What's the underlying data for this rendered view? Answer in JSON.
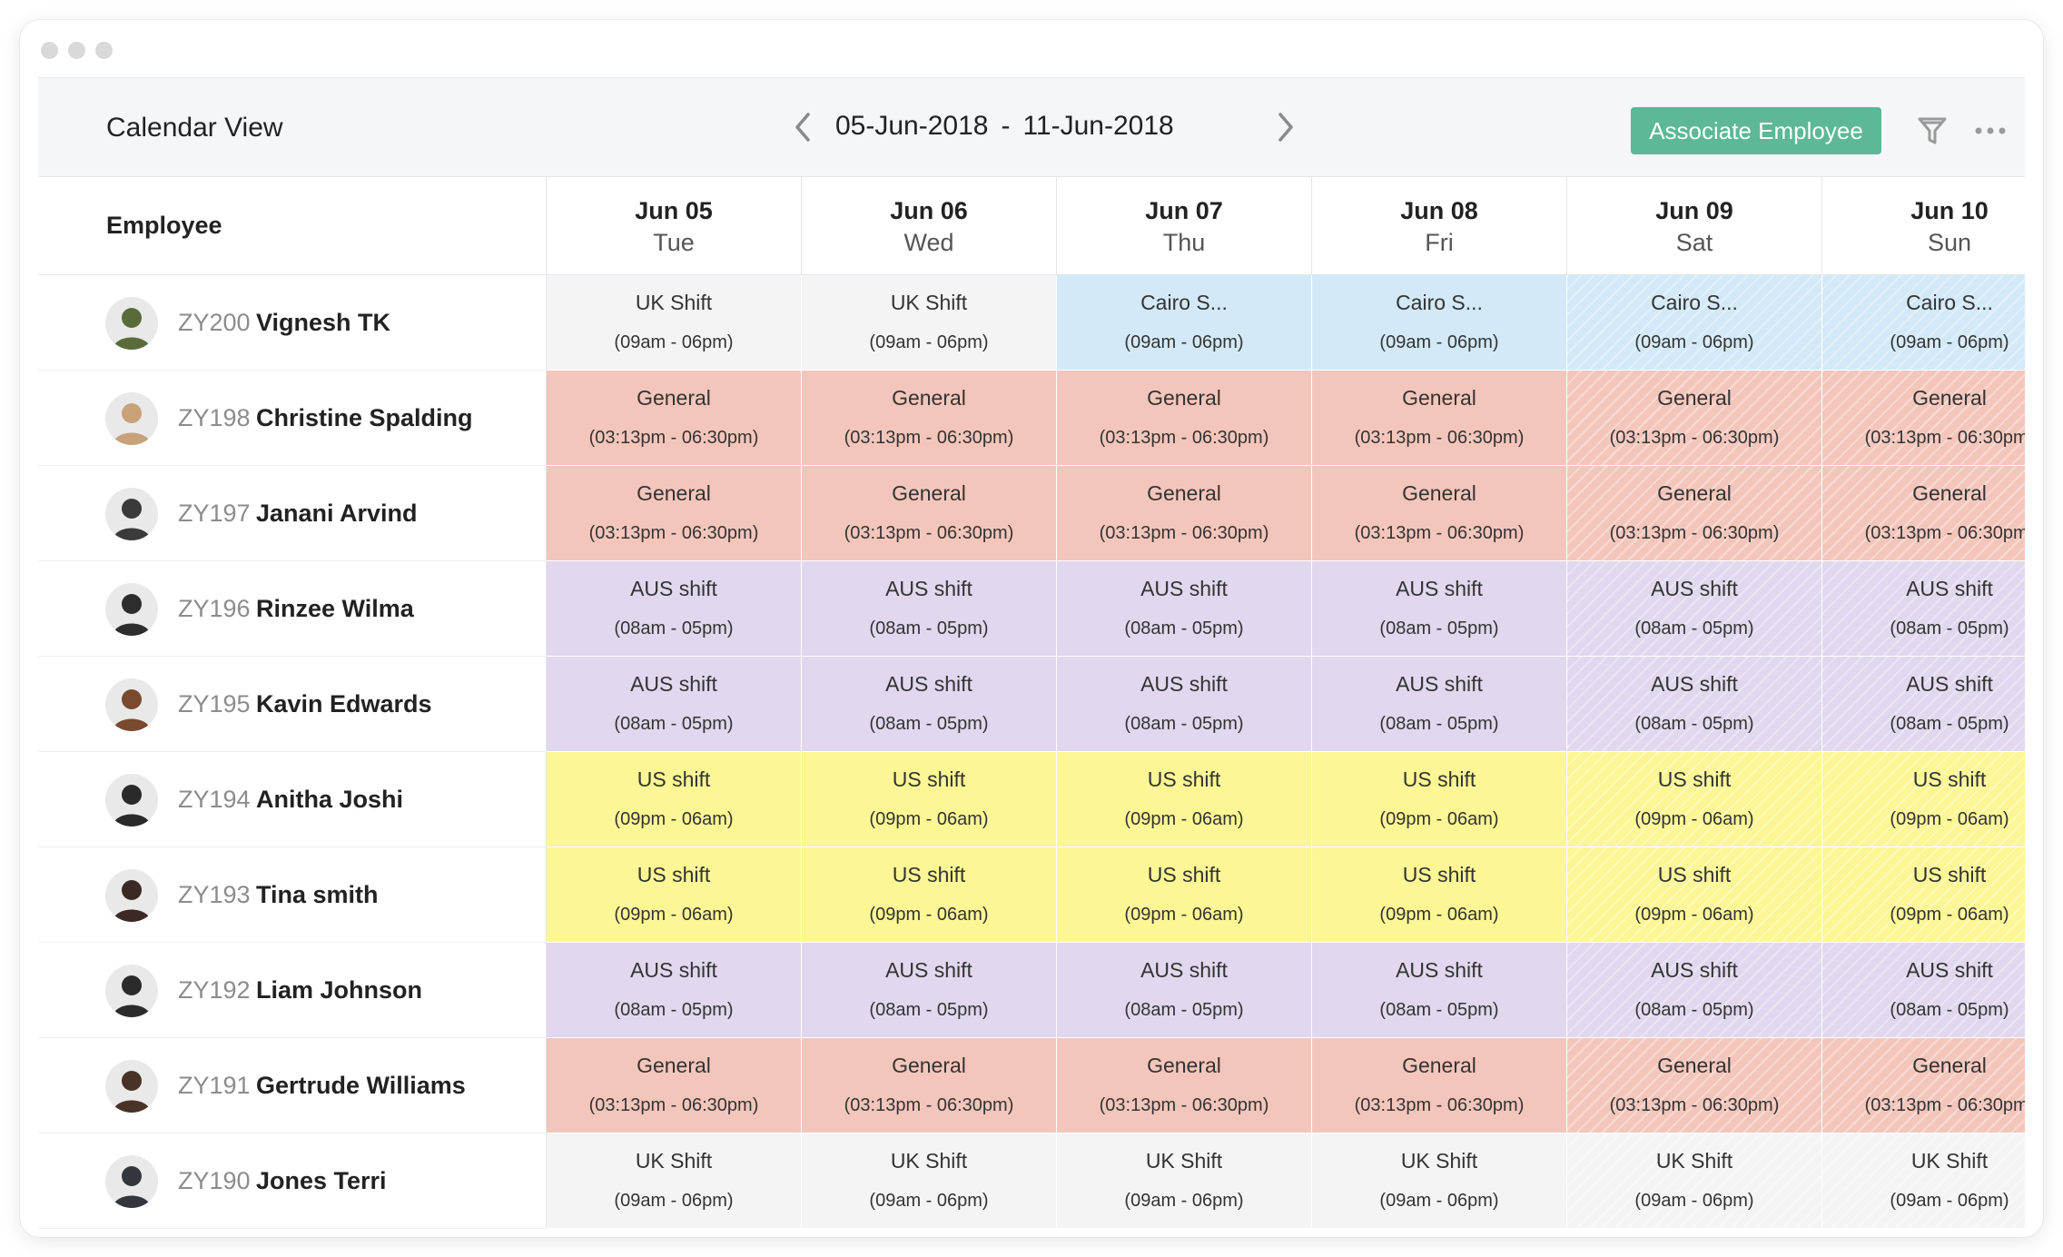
{
  "window": {
    "dots": 3
  },
  "toolbar": {
    "title": "Calendar View",
    "range_start": "05-Jun-2018",
    "range_separator": "-",
    "range_end": "11-Jun-2018",
    "associate_label": "Associate Employee",
    "accent_color": "#5cb897"
  },
  "grid": {
    "employee_header": "Employee",
    "days": [
      {
        "date": "Jun 05",
        "day": "Tue"
      },
      {
        "date": "Jun 06",
        "day": "Wed"
      },
      {
        "date": "Jun 07",
        "day": "Thu"
      },
      {
        "date": "Jun 08",
        "day": "Fri"
      },
      {
        "date": "Jun 09",
        "day": "Sat"
      },
      {
        "date": "Jun 10",
        "day": "Sun"
      }
    ]
  },
  "shift_types": {
    "uk": {
      "name": "UK Shift",
      "time": "(09am - 06pm)",
      "color": "#f4f4f4"
    },
    "cairo": {
      "name": "Cairo S...",
      "time": "(09am - 06pm)",
      "color": "#d3e9f8"
    },
    "general": {
      "name": "General",
      "time": "(03:13pm - 06:30pm)",
      "color": "#f4c6bb"
    },
    "aus": {
      "name": "AUS shift",
      "time": "(08am - 05pm)",
      "color": "#e1d7ee"
    },
    "us": {
      "name": "US shift",
      "time": "(09pm - 06am)",
      "color": "#fcf695"
    }
  },
  "employees": [
    {
      "id": "ZY200",
      "name": "Vignesh TK",
      "avatar_color": "#5a6b3a",
      "shifts": [
        "uk",
        "uk",
        "cairo",
        "cairo",
        "cairo",
        "cairo"
      ]
    },
    {
      "id": "ZY198",
      "name": "Christine Spalding",
      "avatar_color": "#c9a27a",
      "shifts": [
        "general",
        "general",
        "general",
        "general",
        "general",
        "general"
      ]
    },
    {
      "id": "ZY197",
      "name": "Janani Arvind",
      "avatar_color": "#3a3a3a",
      "shifts": [
        "general",
        "general",
        "general",
        "general",
        "general",
        "general"
      ]
    },
    {
      "id": "ZY196",
      "name": "Rinzee Wilma",
      "avatar_color": "#2d2d2d",
      "shifts": [
        "aus",
        "aus",
        "aus",
        "aus",
        "aus",
        "aus"
      ]
    },
    {
      "id": "ZY195",
      "name": "Kavin Edwards",
      "avatar_color": "#7a4a2e",
      "shifts": [
        "aus",
        "aus",
        "aus",
        "aus",
        "aus",
        "aus"
      ]
    },
    {
      "id": "ZY194",
      "name": "Anitha Joshi",
      "avatar_color": "#2a2a2a",
      "shifts": [
        "us",
        "us",
        "us",
        "us",
        "us",
        "us"
      ]
    },
    {
      "id": "ZY193",
      "name": "Tina smith",
      "avatar_color": "#3b2a24",
      "shifts": [
        "us",
        "us",
        "us",
        "us",
        "us",
        "us"
      ]
    },
    {
      "id": "ZY192",
      "name": "Liam Johnson",
      "avatar_color": "#2b2b2b",
      "shifts": [
        "aus",
        "aus",
        "aus",
        "aus",
        "aus",
        "aus"
      ]
    },
    {
      "id": "ZY191",
      "name": "Gertrude Williams",
      "avatar_color": "#4a3226",
      "shifts": [
        "general",
        "general",
        "general",
        "general",
        "general",
        "general"
      ]
    },
    {
      "id": "ZY190",
      "name": "Jones Terri",
      "avatar_color": "#33373d",
      "shifts": [
        "uk",
        "uk",
        "uk",
        "uk",
        "uk",
        "uk"
      ]
    }
  ],
  "icons": {
    "prev": "chevron-left-icon",
    "next": "chevron-right-icon",
    "filter": "filter-icon",
    "more": "more-horizontal-icon",
    "avatar": "avatar-icon"
  }
}
